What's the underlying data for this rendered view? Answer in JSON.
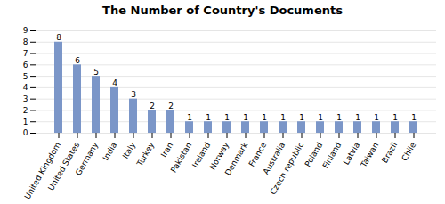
{
  "chart_data": {
    "type": "bar",
    "title": "The Number of Country's Documents",
    "categories": [
      "United Kingdom",
      "United States",
      "Germany",
      "India",
      "Italy",
      "Turkey",
      "Iran",
      "Pakistan",
      "Ireland",
      "Norway",
      "Denmark",
      "France",
      "Australia",
      "Czech republic",
      "Poland",
      "Finland",
      "Latvia",
      "Taiwan",
      "Brazil",
      "Chile"
    ],
    "values": [
      8,
      6,
      5,
      4,
      3,
      2,
      2,
      1,
      1,
      1,
      1,
      1,
      1,
      1,
      1,
      1,
      1,
      1,
      1,
      1
    ],
    "color": "#7B96C8",
    "ylim": [
      0,
      9
    ],
    "yticks": [
      0,
      1,
      2,
      3,
      4,
      5,
      6,
      7,
      8,
      9
    ],
    "grid": true,
    "data_labels": true
  }
}
